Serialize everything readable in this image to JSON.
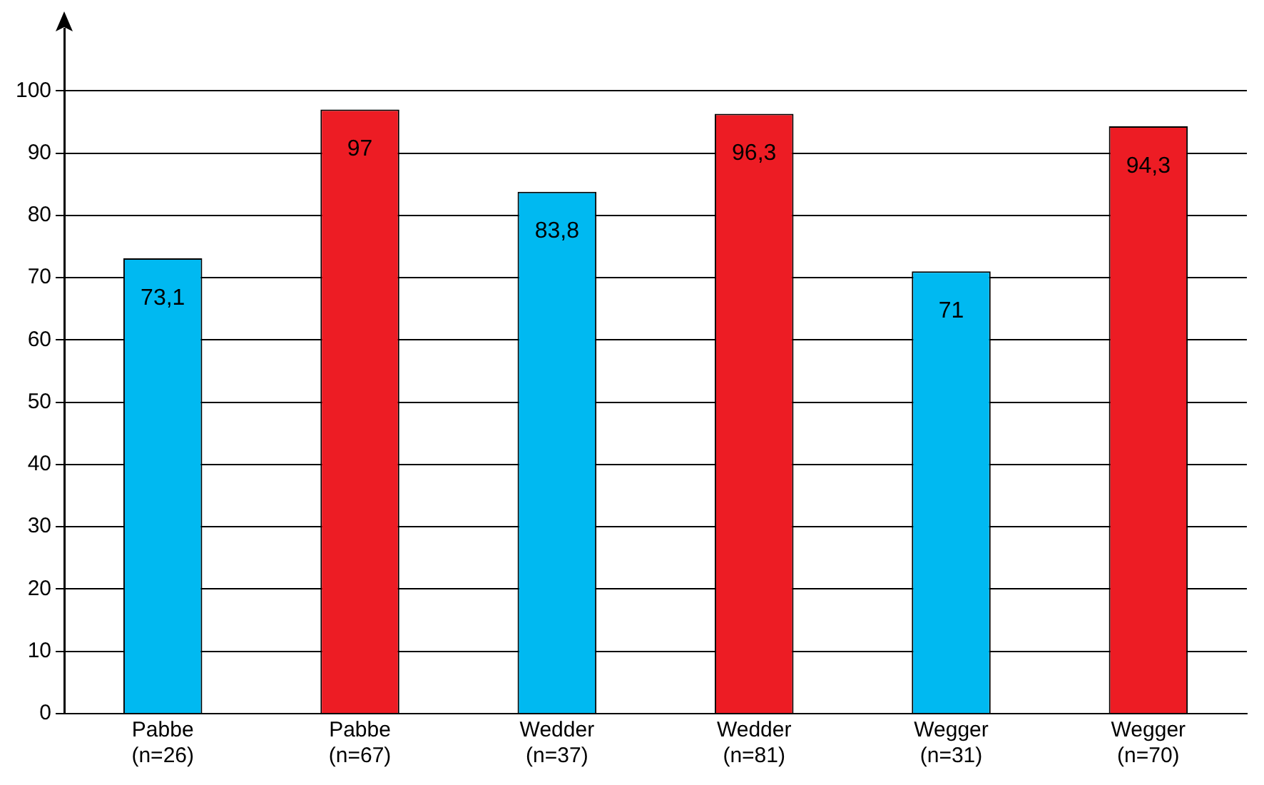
{
  "chart_data": {
    "type": "bar",
    "categories": [
      "Pabbe\n(n=26)",
      "Pabbe\n(n=67)",
      "Wedder\n(n=37)",
      "Wedder\n(n=81)",
      "Wegger\n(n=31)",
      "Wegger\n(n=70)"
    ],
    "values": [
      73.1,
      97,
      83.8,
      96.3,
      71,
      94.3
    ],
    "colors": [
      "#00b9f1",
      "#ed1c24",
      "#00b9f1",
      "#ed1c24",
      "#00b9f1",
      "#ed1c24"
    ],
    "value_labels": [
      "73,1",
      "97",
      "83,8",
      "96,3",
      "71",
      "94,3"
    ],
    "ylim": [
      0,
      110
    ],
    "yticks": [
      0,
      10,
      20,
      30,
      40,
      50,
      60,
      70,
      80,
      90,
      100
    ],
    "grid": "y",
    "legend": false
  }
}
